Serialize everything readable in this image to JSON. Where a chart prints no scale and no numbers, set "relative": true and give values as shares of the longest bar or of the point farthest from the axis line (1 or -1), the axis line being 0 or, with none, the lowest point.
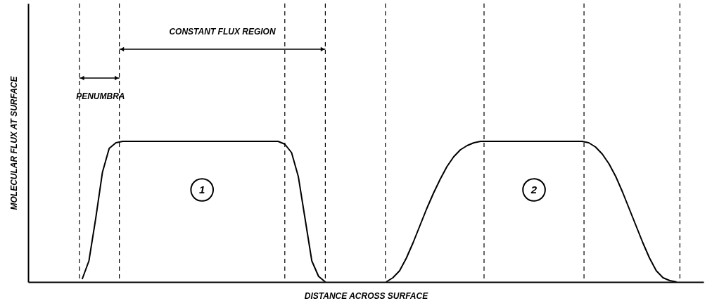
{
  "chart_data": {
    "type": "line",
    "relative": true,
    "xlabel": "DISTANCE ACROSS SURFACE",
    "ylabel": "MOLECULAR FLUX AT SURFACE",
    "tick_labels": false,
    "grid": false,
    "marker": "none",
    "line_style": "solid",
    "categories": [
      null,
      null,
      null,
      null,
      null,
      null,
      null,
      null,
      null,
      null,
      null,
      null,
      null,
      null,
      null,
      null,
      null,
      null,
      null,
      null,
      null,
      null,
      null,
      null,
      null,
      null,
      null,
      null,
      null,
      null,
      null,
      null,
      null,
      null,
      null,
      null,
      null,
      null,
      null,
      null,
      null,
      null,
      null,
      null,
      null,
      null,
      null,
      null,
      null,
      null,
      null,
      null,
      null,
      null,
      null,
      null,
      null,
      null,
      null,
      null,
      null,
      null,
      null,
      null,
      null,
      null,
      null,
      null,
      null,
      null,
      null,
      null,
      null,
      null,
      null,
      null,
      null,
      null,
      null,
      null,
      null,
      null,
      null,
      null,
      null,
      null,
      null,
      null,
      null,
      null,
      null,
      null,
      null,
      null,
      null,
      null,
      null,
      null,
      null,
      null,
      null
    ],
    "series": [
      {
        "color": "#000000",
        "values": [
          null,
          null,
          null,
          null,
          null,
          null,
          null,
          null,
          0.02,
          0.15,
          0.45,
          0.78,
          0.95,
          0.99,
          1,
          1,
          1,
          1,
          1,
          1,
          1,
          1,
          1,
          1,
          1,
          1,
          1,
          1,
          1,
          1,
          1,
          1,
          1,
          1,
          1,
          1,
          1,
          1,
          0.98,
          0.92,
          0.75,
          0.45,
          0.15,
          0.04,
          0,
          null,
          null,
          null,
          null,
          null,
          null,
          null,
          null,
          null,
          null,
          null,
          null,
          null,
          null,
          null,
          null,
          null,
          null,
          null,
          null,
          null,
          null,
          null,
          null,
          null,
          null,
          null,
          null,
          null,
          null,
          null,
          null,
          null,
          null,
          null,
          null,
          null,
          null,
          null,
          null,
          null,
          null,
          null,
          null,
          null,
          null,
          null,
          null,
          null,
          null,
          null,
          null,
          null,
          null,
          null,
          null
        ]
      },
      {
        "color": "#000000",
        "values": [
          null,
          null,
          null,
          null,
          null,
          null,
          null,
          null,
          null,
          null,
          null,
          null,
          null,
          null,
          null,
          null,
          null,
          null,
          null,
          null,
          null,
          null,
          null,
          null,
          null,
          null,
          null,
          null,
          null,
          null,
          null,
          null,
          null,
          null,
          null,
          null,
          null,
          null,
          null,
          null,
          null,
          null,
          null,
          null,
          null,
          null,
          null,
          null,
          null,
          null,
          null,
          null,
          null,
          0,
          0.03,
          0.08,
          0.17,
          0.28,
          0.4,
          0.52,
          0.63,
          0.73,
          0.82,
          0.89,
          0.94,
          0.97,
          0.99,
          1,
          1,
          1,
          1,
          1,
          1,
          1,
          1,
          1,
          1,
          1,
          1,
          1,
          1,
          1,
          1,
          0.99,
          0.96,
          0.91,
          0.84,
          0.75,
          0.64,
          0.52,
          0.4,
          0.28,
          0.17,
          0.08,
          0.03,
          0.01,
          0,
          null,
          null,
          null,
          null
        ]
      }
    ],
    "annotations": [
      "CONSTANT FLUX REGION",
      "PENUMBRA",
      "1",
      "2"
    ]
  }
}
